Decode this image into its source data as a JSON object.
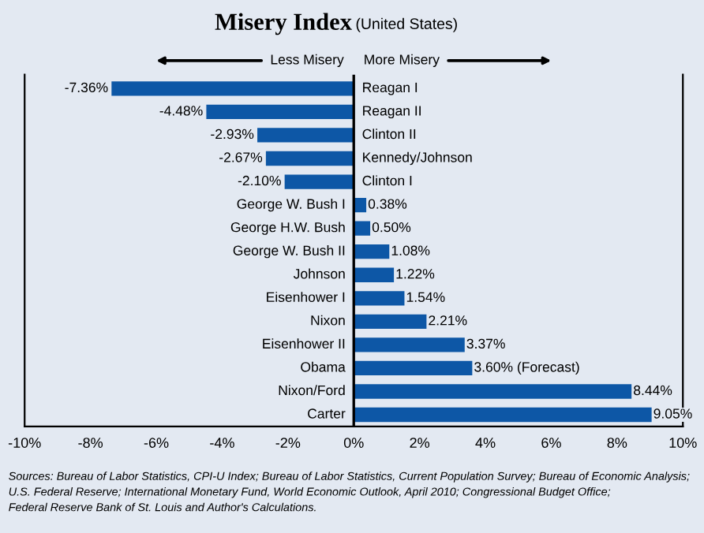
{
  "chart_data": {
    "type": "bar",
    "orientation": "horizontal",
    "title": "Misery Index",
    "subtitle": "(United States)",
    "categories": [
      "Reagan I",
      "Reagan II",
      "Clinton II",
      "Kennedy/Johnson",
      "Clinton I",
      "George W. Bush I",
      "George H.W. Bush",
      "George W. Bush II",
      "Johnson",
      "Eisenhower I",
      "Nixon",
      "Eisenhower II",
      "Obama",
      "Nixon/Ford",
      "Carter"
    ],
    "values": [
      -7.36,
      -4.48,
      -2.93,
      -2.67,
      -2.1,
      0.38,
      0.5,
      1.08,
      1.22,
      1.54,
      2.21,
      3.37,
      3.6,
      8.44,
      9.05
    ],
    "value_labels": [
      "-7.36%",
      "-4.48%",
      "-2.93%",
      "-2.67%",
      "-2.10%",
      "0.38%",
      "0.50%",
      "1.08%",
      "1.22%",
      "1.54%",
      "2.21%",
      "3.37%",
      "3.60% (Forecast)",
      "8.44%",
      "9.05%"
    ],
    "color": "#0d57a6",
    "xlim": [
      -10,
      10
    ],
    "xticks": [
      {
        "value": -10,
        "label": "-10%"
      },
      {
        "value": -8,
        "label": "-8%"
      },
      {
        "value": -6,
        "label": "-6%"
      },
      {
        "value": -4,
        "label": "-4%"
      },
      {
        "value": -2,
        "label": "-2%"
      },
      {
        "value": 0,
        "label": "0%"
      },
      {
        "value": 2,
        "label": "2%"
      },
      {
        "value": 4,
        "label": "4%"
      },
      {
        "value": 6,
        "label": "6%"
      },
      {
        "value": 8,
        "label": "8%"
      },
      {
        "value": 10,
        "label": "10%"
      }
    ],
    "annotations": [
      "Less Misery",
      "More Misery",
      "Sources: Bureau of Labor Statistics, CPI-U Index; Bureau of Labor Statistics, Current Population Survey; Bureau of Economic Analysis;\nU.S. Federal Reserve; International Monetary Fund, World Economic Outlook, April 2010; Congressional Budget Office;\nFederal Reserve Bank of St. Louis and Author's Calculations."
    ]
  }
}
